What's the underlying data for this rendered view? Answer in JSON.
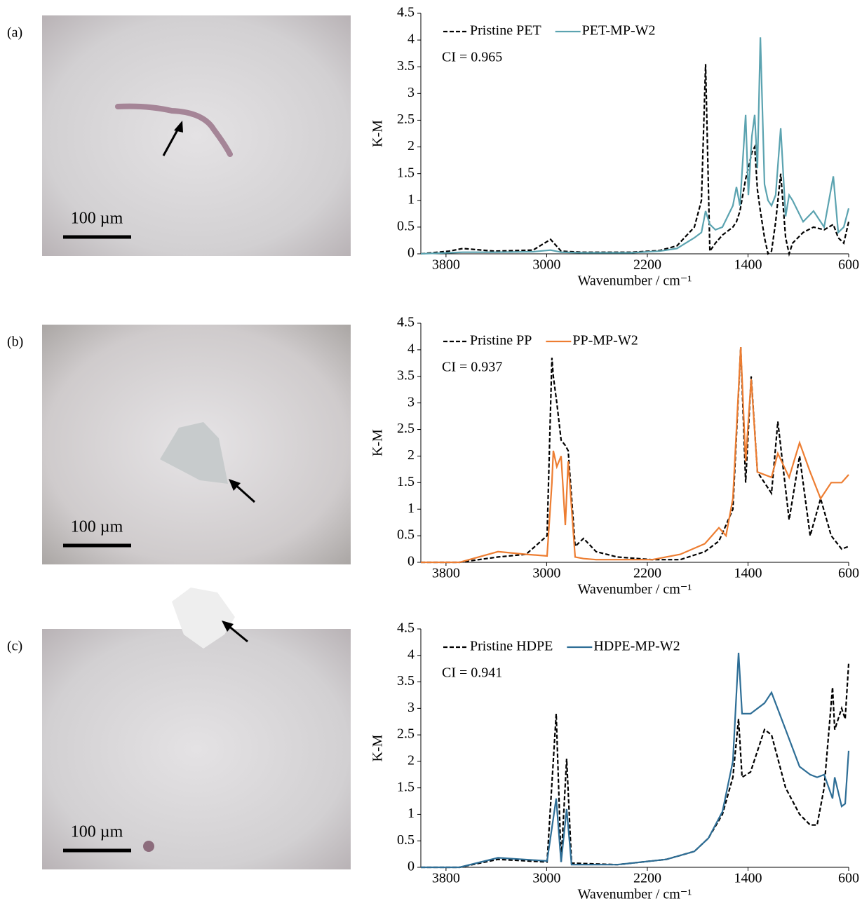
{
  "panels": [
    {
      "label": "(a)",
      "scale_bar": "100 µm"
    },
    {
      "label": "(b)",
      "scale_bar": "100 µm"
    },
    {
      "label": "(c)",
      "scale_bar": "100 µm"
    }
  ],
  "chart_data": [
    {
      "type": "line",
      "annotation": "CI = 0.965",
      "x_label": "Wavenumber / cm⁻¹",
      "y_label": "K-M",
      "xlim": [
        4000,
        600
      ],
      "xticks": [
        3800,
        3000,
        2200,
        1400,
        600
      ],
      "ylim": [
        0,
        4.5
      ],
      "yticks": [
        0,
        0.5,
        1,
        1.5,
        2,
        2.5,
        3,
        3.5,
        4,
        4.5
      ],
      "x": [
        4000,
        3777,
        3666,
        3415,
        3108,
        2969,
        2885,
        2718,
        2328,
        2105,
        1965,
        1826,
        1770,
        1737,
        1703,
        1659,
        1603,
        1520,
        1492,
        1464,
        1419,
        1397,
        1369,
        1347,
        1325,
        1302,
        1269,
        1241,
        1213,
        1180,
        1140,
        1101,
        1073,
        1046,
        962,
        879,
        795,
        722,
        683,
        639,
        600
      ],
      "series": [
        {
          "name": "Pristine PET",
          "color": "#000000",
          "dashed": true,
          "values": [
            0,
            0.05,
            0.1,
            0.05,
            0.07,
            0.27,
            0.05,
            0.03,
            0.03,
            0.06,
            0.15,
            0.5,
            1.0,
            3.55,
            0.05,
            0.2,
            0.35,
            0.5,
            0.6,
            0.8,
            1.4,
            1.6,
            1.9,
            2.0,
            1.2,
            0.8,
            0.3,
            0,
            0.05,
            0.6,
            1.5,
            0.3,
            0,
            0.2,
            0.4,
            0.5,
            0.45,
            0.55,
            0.3,
            0.2,
            0.6
          ]
        },
        {
          "name": "PET-MP-W2",
          "color": "#5ba3b0",
          "dashed": false,
          "values": [
            0,
            0.02,
            0.03,
            0.03,
            0.04,
            0.07,
            0.03,
            0.02,
            0.02,
            0.05,
            0.1,
            0.3,
            0.4,
            0.8,
            0.55,
            0.45,
            0.5,
            0.9,
            1.25,
            0.9,
            2.6,
            1.1,
            2.2,
            2.6,
            1.6,
            4.05,
            1.3,
            1.0,
            0.9,
            1.1,
            2.35,
            0.7,
            1.1,
            1.0,
            0.6,
            0.8,
            0.5,
            1.45,
            0.4,
            0.5,
            0.85
          ]
        }
      ]
    },
    {
      "type": "line",
      "annotation": "CI = 0.937",
      "x_label": "Wavenumber / cm⁻¹",
      "y_label": "K-M",
      "xlim": [
        4000,
        600
      ],
      "xticks": [
        3800,
        3000,
        2200,
        1400,
        600
      ],
      "ylim": [
        0,
        4.5
      ],
      "yticks": [
        0,
        0.5,
        1,
        1.5,
        2,
        2.5,
        3,
        3.5,
        4,
        4.5
      ],
      "x": [
        4000,
        3693,
        3387,
        3164,
        2997,
        2958,
        2947,
        2919,
        2885,
        2852,
        2829,
        2774,
        2707,
        2607,
        2439,
        2161,
        1938,
        1743,
        1631,
        1575,
        1520,
        1458,
        1419,
        1375,
        1325,
        1213,
        1163,
        1073,
        990,
        906,
        823,
        739,
        656,
        600
      ],
      "series": [
        {
          "name": "Pristine PP",
          "color": "#000000",
          "dashed": true,
          "values": [
            0,
            0,
            0.1,
            0.15,
            0.5,
            3.85,
            3.5,
            3.0,
            2.3,
            2.2,
            2.1,
            0.3,
            0.45,
            0.2,
            0.1,
            0.05,
            0.05,
            0.2,
            0.4,
            0.7,
            1.0,
            4.05,
            1.5,
            3.5,
            1.7,
            1.3,
            2.65,
            0.8,
            2.0,
            0.5,
            1.2,
            0.5,
            0.25,
            0.3
          ]
        },
        {
          "name": "PP-MP-W2",
          "color": "#ed7d31",
          "dashed": false,
          "values": [
            0,
            0,
            0.2,
            0.15,
            0.12,
            1.5,
            2.1,
            1.8,
            2.0,
            0.7,
            1.9,
            0.1,
            0.07,
            0.05,
            0.05,
            0.05,
            0.15,
            0.35,
            0.65,
            0.5,
            1.2,
            4.05,
            1.9,
            3.45,
            1.7,
            1.6,
            2.05,
            1.6,
            2.25,
            1.7,
            1.2,
            1.5,
            1.5,
            1.65
          ]
        }
      ]
    },
    {
      "type": "line",
      "annotation": "CI = 0.941",
      "x_label": "Wavenumber / cm⁻¹",
      "y_label": "K-M",
      "xlim": [
        4000,
        600
      ],
      "xticks": [
        3800,
        3000,
        2200,
        1400,
        600
      ],
      "ylim": [
        0,
        4.5
      ],
      "yticks": [
        0,
        0.5,
        1,
        1.5,
        2,
        2.5,
        3,
        3.5,
        4,
        4.5
      ],
      "x": [
        4000,
        3693,
        3387,
        2997,
        2924,
        2885,
        2841,
        2802,
        2439,
        2049,
        1826,
        1715,
        1603,
        1520,
        1475,
        1447,
        1380,
        1269,
        1213,
        1101,
        990,
        906,
        851,
        795,
        728,
        711,
        656,
        628,
        600
      ],
      "series": [
        {
          "name": "Pristine HDPE",
          "color": "#000000",
          "dashed": true,
          "values": [
            0,
            0,
            0.15,
            0.1,
            2.9,
            0.1,
            2.05,
            0.08,
            0.05,
            0.15,
            0.3,
            0.55,
            1.0,
            1.7,
            2.8,
            1.7,
            1.8,
            2.6,
            2.5,
            1.5,
            1.0,
            0.8,
            0.8,
            1.5,
            3.4,
            2.6,
            3.0,
            2.8,
            3.85
          ]
        },
        {
          "name": "HDPE-MP-W2",
          "color": "#2e6e96",
          "dashed": false,
          "values": [
            0,
            0,
            0.18,
            0.12,
            1.3,
            0.1,
            1.1,
            0.05,
            0.05,
            0.15,
            0.3,
            0.55,
            1.05,
            2.0,
            4.05,
            2.9,
            2.9,
            3.1,
            3.3,
            2.6,
            1.9,
            1.75,
            1.7,
            1.75,
            1.3,
            1.7,
            1.15,
            1.2,
            2.2
          ]
        }
      ]
    }
  ]
}
